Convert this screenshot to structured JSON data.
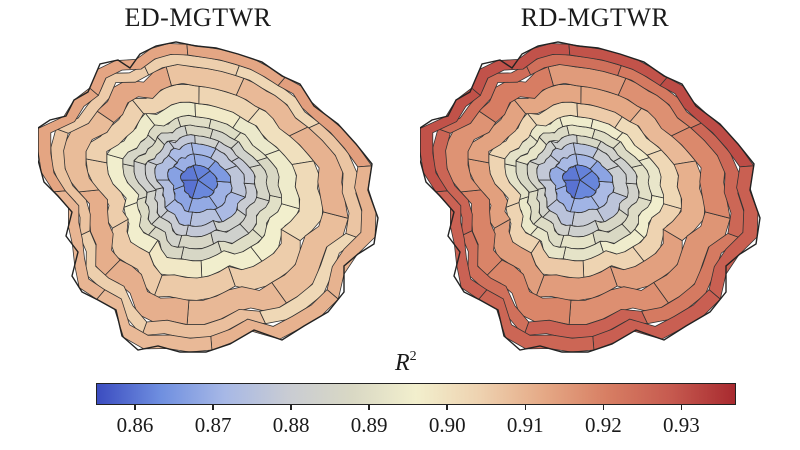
{
  "maps": [
    {
      "id": "left",
      "title": "ED-MGTWR",
      "ring_values": [
        0.862,
        0.868,
        0.874,
        0.88,
        0.885,
        0.889,
        0.896,
        0.903,
        0.91,
        0.905,
        0.912
      ]
    },
    {
      "id": "right",
      "title": "RD-MGTWR",
      "ring_values": [
        0.862,
        0.87,
        0.878,
        0.884,
        0.89,
        0.894,
        0.904,
        0.912,
        0.918,
        0.924,
        0.929
      ]
    }
  ],
  "colorbar": {
    "label_main": "R",
    "label_sup": "2",
    "min": 0.855,
    "max": 0.937,
    "ticks": [
      "0.86",
      "0.87",
      "0.88",
      "0.89",
      "0.90",
      "0.91",
      "0.92",
      "0.93"
    ],
    "colormap": [
      "#3b4cc0",
      "#6f8fe0",
      "#a7b8e6",
      "#c9ccd3",
      "#d9d8c4",
      "#f2efcd",
      "#eed2b0",
      "#e5a986",
      "#d77e63",
      "#c65a4f",
      "#a82a2f"
    ]
  }
}
